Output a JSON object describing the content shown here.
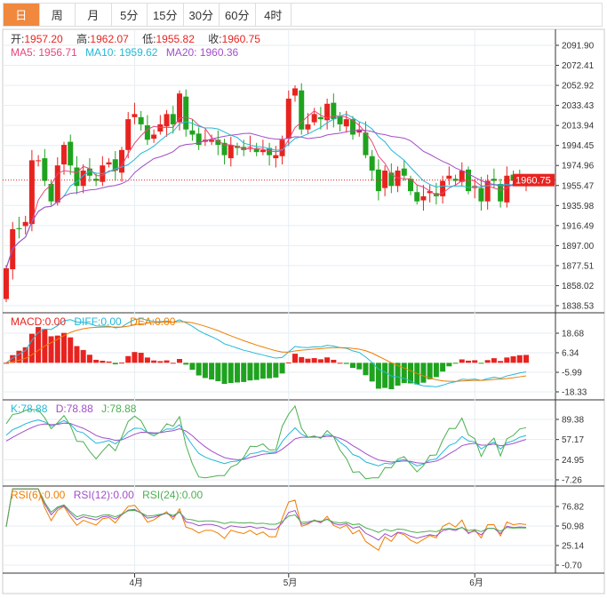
{
  "tabs": [
    "日",
    "周",
    "月",
    "5分",
    "15分",
    "30分",
    "60分",
    "4时"
  ],
  "active_tab": 0,
  "ohlc": {
    "open_label": "开:",
    "open": "1957.20",
    "high_label": "高:",
    "high": "1962.07",
    "low_label": "低:",
    "low": "1955.82",
    "close_label": "收:",
    "close": "1960.75"
  },
  "ma": {
    "ma5": "MA5: 1956.71",
    "ma10": "MA10: 1959.62",
    "ma20": "MA20: 1960.36"
  },
  "macd_legend": {
    "macd": "MACD:0.00",
    "diff": "DIFF:0.00",
    "dea": "DEA:0.00"
  },
  "kdj_legend": {
    "k": "K:78.88",
    "d": "D:78.88",
    "j": "J:78.88"
  },
  "rsi_legend": {
    "r6": "RSI(6):0.00",
    "r12": "RSI(12):0.00",
    "r24": "RSI(24):0.00"
  },
  "current_price": "1960.75",
  "colors": {
    "up": "#e8231f",
    "down": "#1fa31f",
    "ma5": "#e9457a",
    "ma10": "#22b8d8",
    "ma20": "#a24fc9",
    "accent": "#f0883e"
  },
  "chart_data": {
    "type": "candlestick",
    "price_axis": [
      "2091.90",
      "2072.41",
      "2052.92",
      "2033.43",
      "2013.94",
      "1994.45",
      "1974.96",
      "1955.47",
      "1935.98",
      "1916.49",
      "1897.00",
      "1877.51",
      "1858.02",
      "1838.53"
    ],
    "price_range": [
      1838.53,
      2091.9
    ],
    "macd_axis": [
      "18.68",
      "6.34",
      "-5.99",
      "-18.33"
    ],
    "kdj_axis": [
      "89.38",
      "57.17",
      "24.95",
      "-7.26"
    ],
    "rsi_axis": [
      "76.82",
      "50.98",
      "25.14",
      "-0.70"
    ],
    "x_labels": [
      {
        "label": "4月",
        "index": 20
      },
      {
        "label": "5月",
        "index": 44
      },
      {
        "label": "6月",
        "index": 73
      }
    ],
    "closes": [
      1875,
      1913,
      1913,
      1920,
      1980,
      1980,
      1960,
      1940,
      1975,
      1995,
      1975,
      1955,
      1970,
      1965,
      1960,
      1975,
      1978,
      1970,
      1990,
      2020,
      2025,
      2015,
      2000,
      2005,
      2015,
      2025,
      2015,
      2045,
      2010,
      2005,
      1995,
      2000,
      2000,
      1995,
      1985,
      1995,
      1992,
      1990,
      1993,
      1988,
      1990,
      1985,
      1985,
      2000,
      2040,
      2050,
      2010,
      2015,
      2025,
      2020,
      2035,
      2020,
      2015,
      2020,
      2005,
      2010,
      1985,
      1970,
      1950,
      1970,
      1955,
      1970,
      1965,
      1950,
      1940,
      1945,
      1950,
      1945,
      1960,
      1965,
      1960,
      1970,
      1950,
      1955,
      1940,
      1960,
      1960,
      1940,
      1965,
      1960,
      1962,
      1960.75
    ]
  }
}
